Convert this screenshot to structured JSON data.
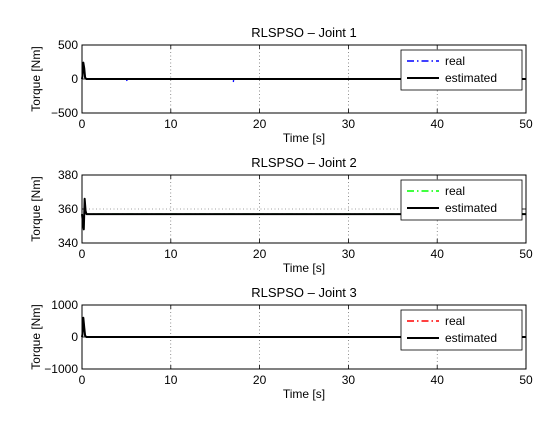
{
  "chart_data": [
    {
      "type": "line",
      "title": "RLSPSO – Joint 1",
      "xlabel": "Time [s]",
      "ylabel": "Torque [Nm]",
      "xlim": [
        0,
        50
      ],
      "ylim": [
        -500,
        500
      ],
      "xticks": [
        0,
        10,
        20,
        30,
        40,
        50
      ],
      "yticks": [
        500,
        0,
        -500
      ],
      "ytick_labels": [
        "500",
        "0",
        "−500"
      ],
      "grid": true,
      "legend_position": "top-right",
      "series": [
        {
          "name": "real",
          "color": "#0000ff",
          "style": "dash-dot",
          "x": [
            0,
            0.05,
            0.15,
            0.25,
            0.35,
            0.5,
            0.7,
            1,
            3,
            5,
            5.05,
            5.1,
            8,
            12,
            15,
            17,
            17.05,
            17.1,
            20,
            25,
            28,
            30,
            30.05,
            30.1,
            35,
            40,
            45,
            50
          ],
          "y": [
            0,
            40,
            240,
            160,
            20,
            0,
            0,
            0,
            0,
            0,
            -20,
            0,
            0,
            0,
            0,
            0,
            -35,
            0,
            0,
            0,
            0,
            0,
            15,
            0,
            0,
            0,
            0,
            0
          ]
        },
        {
          "name": "estimated",
          "color": "#000000",
          "style": "solid",
          "x": [
            0,
            0.05,
            0.15,
            0.25,
            0.35,
            0.5,
            0.7,
            1,
            50
          ],
          "y": [
            0,
            40,
            240,
            160,
            20,
            0,
            0,
            0,
            0
          ]
        }
      ]
    },
    {
      "type": "line",
      "title": "RLSPSO – Joint 2",
      "xlabel": "Time [s]",
      "ylabel": "Torque [Nm]",
      "xlim": [
        0,
        50
      ],
      "ylim": [
        340,
        380
      ],
      "xticks": [
        0,
        10,
        20,
        30,
        40,
        50
      ],
      "yticks": [
        380,
        360,
        340
      ],
      "ytick_labels": [
        "380",
        "360",
        "340"
      ],
      "grid": true,
      "legend_position": "top-right",
      "series": [
        {
          "name": "real",
          "color": "#00ff00",
          "style": "dash-dot",
          "x": [
            0,
            0.1,
            0.2,
            0.3,
            0.4,
            0.5,
            0.7,
            1,
            50
          ],
          "y": [
            357,
            352,
            348,
            366,
            359,
            357,
            357,
            357,
            357
          ]
        },
        {
          "name": "estimated",
          "color": "#000000",
          "style": "solid",
          "x": [
            0,
            0.1,
            0.2,
            0.3,
            0.4,
            0.5,
            0.7,
            1,
            50
          ],
          "y": [
            357,
            352,
            348,
            366,
            359,
            357,
            357,
            357,
            357
          ]
        }
      ]
    },
    {
      "type": "line",
      "title": "RLSPSO – Joint 3",
      "xlabel": "Time [s]",
      "ylabel": "Torque [Nm]",
      "xlim": [
        0,
        50
      ],
      "ylim": [
        -1000,
        1000
      ],
      "xticks": [
        0,
        10,
        20,
        30,
        40,
        50
      ],
      "yticks": [
        1000,
        0,
        -1000
      ],
      "ytick_labels": [
        "1000",
        "0",
        "−1000"
      ],
      "grid": true,
      "legend_position": "top-right",
      "series": [
        {
          "name": "real",
          "color": "#ff0000",
          "style": "dash-dot",
          "x": [
            0,
            0.05,
            0.15,
            0.25,
            0.35,
            0.5,
            0.7,
            1,
            5,
            5.05,
            5.1,
            50
          ],
          "y": [
            0,
            80,
            600,
            300,
            40,
            0,
            0,
            0,
            0,
            -25,
            0,
            0
          ]
        },
        {
          "name": "estimated",
          "color": "#000000",
          "style": "solid",
          "x": [
            0,
            0.05,
            0.15,
            0.25,
            0.35,
            0.5,
            0.7,
            1,
            50
          ],
          "y": [
            0,
            80,
            600,
            300,
            40,
            0,
            0,
            0,
            0
          ]
        }
      ]
    }
  ]
}
